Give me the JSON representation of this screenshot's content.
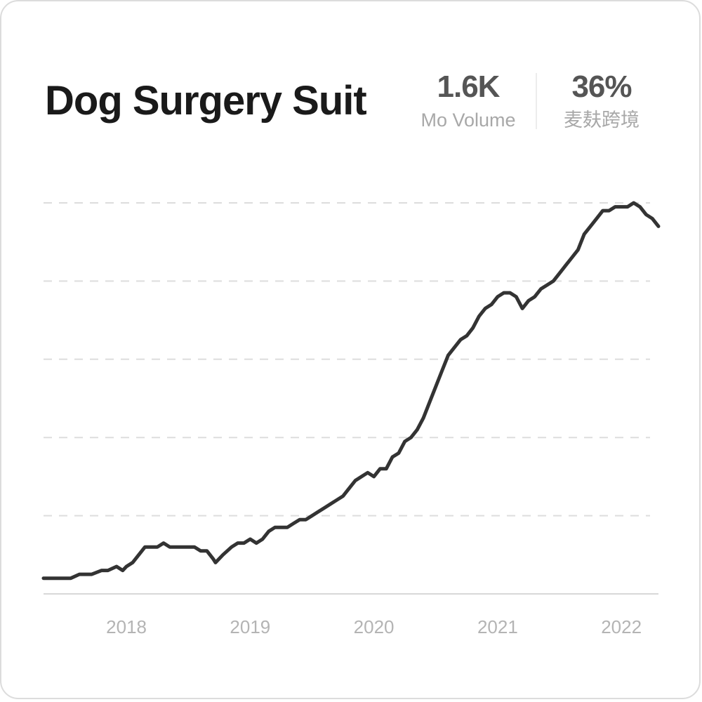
{
  "card": {
    "title": "Dog Surgery Suit",
    "stats": [
      {
        "value": "1.6K",
        "label": "Mo Volume"
      },
      {
        "value": "36%",
        "label": "麦麸跨境"
      }
    ]
  },
  "colors": {
    "line": "#333333",
    "grid": "#dddddd",
    "axis": "#d8d8d8",
    "tick_text": "#b4b4b4"
  },
  "chart_data": {
    "type": "line",
    "title": "Dog Surgery Suit",
    "xlabel": "",
    "ylabel": "",
    "x_ticks": [
      "2018",
      "2019",
      "2020",
      "2021",
      "2022"
    ],
    "x_tick_values": [
      2018,
      2019,
      2020,
      2021,
      2022
    ],
    "xlim": [
      2017.33,
      2022.3
    ],
    "ylim": [
      0,
      100
    ],
    "y_gridlines": [
      20,
      40,
      60,
      80,
      100
    ],
    "grid": "horizontal dashed",
    "legend": "none",
    "series": [
      {
        "x": [
          2017.33,
          2017.38,
          2017.45,
          2017.5,
          2017.55,
          2017.62,
          2017.67,
          2017.72,
          2017.8,
          2017.85,
          2017.92,
          2017.97,
          2018.0,
          2018.05,
          2018.1,
          2018.15,
          2018.2,
          2018.25,
          2018.3,
          2018.35,
          2018.4,
          2018.45,
          2018.5,
          2018.55,
          2018.6,
          2018.65,
          2018.7,
          2018.72,
          2018.78,
          2018.85,
          2018.9,
          2018.95,
          2019.0,
          2019.05,
          2019.1,
          2019.15,
          2019.2,
          2019.25,
          2019.3,
          2019.35,
          2019.4,
          2019.45,
          2019.5,
          2019.55,
          2019.6,
          2019.65,
          2019.7,
          2019.75,
          2019.8,
          2019.85,
          2019.9,
          2019.95,
          2020.0,
          2020.05,
          2020.1,
          2020.15,
          2020.2,
          2020.25,
          2020.3,
          2020.35,
          2020.4,
          2020.45,
          2020.5,
          2020.55,
          2020.6,
          2020.65,
          2020.7,
          2020.75,
          2020.8,
          2020.85,
          2020.9,
          2020.95,
          2021.0,
          2021.05,
          2021.1,
          2021.15,
          2021.2,
          2021.25,
          2021.3,
          2021.35,
          2021.4,
          2021.45,
          2021.5,
          2021.55,
          2021.6,
          2021.65,
          2021.7,
          2021.75,
          2021.8,
          2021.85,
          2021.9,
          2021.95,
          2022.0,
          2022.05,
          2022.1,
          2022.15,
          2022.2,
          2022.25,
          2022.3
        ],
        "values": [
          4,
          4,
          4,
          4,
          4,
          5,
          5,
          5,
          6,
          6,
          7,
          6,
          7,
          8,
          10,
          12,
          12,
          12,
          13,
          12,
          12,
          12,
          12,
          12,
          11,
          11,
          9,
          8,
          10,
          12,
          13,
          13,
          14,
          13,
          14,
          16,
          17,
          17,
          17,
          18,
          19,
          19,
          20,
          21,
          22,
          23,
          24,
          25,
          27,
          29,
          30,
          31,
          30,
          32,
          32,
          35,
          36,
          39,
          40,
          42,
          45,
          49,
          53,
          57,
          61,
          63,
          65,
          66,
          68,
          71,
          73,
          74,
          76,
          77,
          77,
          76,
          73,
          75,
          76,
          78,
          79,
          80,
          82,
          84,
          86,
          88,
          92,
          94,
          96,
          98,
          98,
          99,
          99,
          99,
          100,
          99,
          97,
          96,
          94
        ]
      }
    ]
  }
}
